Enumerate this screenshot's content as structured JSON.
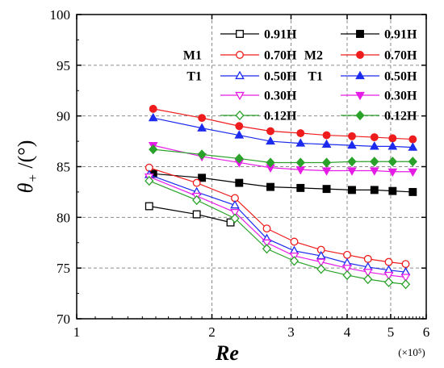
{
  "chart_data": {
    "type": "line",
    "xlabel": "Re",
    "x_multiplier": "(×10⁵)",
    "ylabel_parts": {
      "main": "θ",
      "sub": "+",
      "unit": "/(°)"
    },
    "xlim": [
      1,
      6
    ],
    "ylim": [
      70,
      100
    ],
    "x_ticks": [
      1,
      2,
      3,
      4,
      5,
      6
    ],
    "y_ticks": [
      70,
      75,
      80,
      85,
      90,
      95,
      100
    ],
    "grid": true,
    "legend_position": "top-right",
    "legend_groups": [
      {
        "label": "M1",
        "row": 1,
        "column": 0
      },
      {
        "label": "M2",
        "row": 1,
        "column": 1
      },
      {
        "label": "T1",
        "row": 2,
        "column": 0
      },
      {
        "label": "T1",
        "row": 2,
        "column": 1
      }
    ],
    "series": [
      {
        "name": "0.91H",
        "color": "#000000",
        "marker": "square",
        "filled": false,
        "legend_row": 0,
        "legend_column": 0,
        "x": [
          1.45,
          1.85,
          2.2
        ],
        "y": [
          81.1,
          80.3,
          79.5
        ]
      },
      {
        "name": "0.91H",
        "color": "#000000",
        "marker": "square",
        "filled": true,
        "legend_row": 0,
        "legend_column": 1,
        "x": [
          1.48,
          1.9,
          2.3,
          2.7,
          3.15,
          3.6,
          4.1,
          4.6,
          5.05,
          5.6
        ],
        "y": [
          84.3,
          83.9,
          83.4,
          83.0,
          82.9,
          82.8,
          82.7,
          82.7,
          82.6,
          82.5
        ]
      },
      {
        "name": "0.70H",
        "color": "#ee1c1c",
        "marker": "circle",
        "filled": false,
        "legend_row": 1,
        "legend_column": 0,
        "x": [
          1.45,
          1.85,
          2.25,
          2.65,
          3.05,
          3.5,
          4.0,
          4.45,
          4.95,
          5.4
        ],
        "y": [
          84.9,
          83.4,
          81.9,
          78.9,
          77.6,
          76.8,
          76.3,
          75.9,
          75.6,
          75.4
        ]
      },
      {
        "name": "0.70H",
        "color": "#ee1c1c",
        "marker": "circle",
        "filled": true,
        "legend_row": 1,
        "legend_column": 1,
        "x": [
          1.48,
          1.9,
          2.3,
          2.7,
          3.15,
          3.6,
          4.1,
          4.6,
          5.05,
          5.6
        ],
        "y": [
          90.7,
          89.8,
          89.0,
          88.5,
          88.3,
          88.1,
          88.0,
          87.9,
          87.8,
          87.7
        ]
      },
      {
        "name": "0.50H",
        "color": "#1c2bee",
        "marker": "triangle-up",
        "filled": false,
        "legend_row": 2,
        "legend_column": 0,
        "x": [
          1.45,
          1.85,
          2.25,
          2.65,
          3.05,
          3.5,
          4.0,
          4.45,
          4.95,
          5.4
        ],
        "y": [
          84.2,
          82.5,
          81.2,
          77.9,
          76.7,
          76.2,
          75.5,
          75.1,
          74.8,
          74.6
        ]
      },
      {
        "name": "0.50H",
        "color": "#1c2bee",
        "marker": "triangle-up",
        "filled": true,
        "legend_row": 2,
        "legend_column": 1,
        "x": [
          1.48,
          1.9,
          2.3,
          2.7,
          3.15,
          3.6,
          4.1,
          4.6,
          5.05,
          5.6
        ],
        "y": [
          89.8,
          88.8,
          88.1,
          87.5,
          87.3,
          87.2,
          87.1,
          87.0,
          87.0,
          86.9
        ]
      },
      {
        "name": "0.30H",
        "color": "#e61ce6",
        "marker": "triangle-down",
        "filled": false,
        "legend_row": 3,
        "legend_column": 0,
        "x": [
          1.45,
          1.85,
          2.25,
          2.65,
          3.05,
          3.5,
          4.0,
          4.45,
          4.95,
          5.4
        ],
        "y": [
          84.0,
          82.1,
          80.5,
          77.5,
          76.2,
          75.6,
          75.0,
          74.6,
          74.3,
          74.1
        ]
      },
      {
        "name": "0.30H",
        "color": "#e61ce6",
        "marker": "triangle-down",
        "filled": true,
        "legend_row": 3,
        "legend_column": 1,
        "x": [
          1.48,
          1.9,
          2.3,
          2.7,
          3.15,
          3.6,
          4.1,
          4.6,
          5.05,
          5.6
        ],
        "y": [
          87.1,
          86.0,
          85.4,
          84.9,
          84.7,
          84.6,
          84.6,
          84.6,
          84.5,
          84.5
        ]
      },
      {
        "name": "0.12H",
        "color": "#2aa22a",
        "marker": "diamond",
        "filled": false,
        "legend_row": 4,
        "legend_column": 0,
        "x": [
          1.45,
          1.85,
          2.25,
          2.65,
          3.05,
          3.5,
          4.0,
          4.45,
          4.95,
          5.4
        ],
        "y": [
          83.6,
          81.7,
          79.9,
          76.9,
          75.7,
          74.9,
          74.3,
          73.9,
          73.6,
          73.4
        ]
      },
      {
        "name": "0.12H",
        "color": "#2aa22a",
        "marker": "diamond",
        "filled": true,
        "legend_row": 4,
        "legend_column": 1,
        "x": [
          1.48,
          1.9,
          2.3,
          2.7,
          3.15,
          3.6,
          4.1,
          4.6,
          5.05,
          5.6
        ],
        "y": [
          86.7,
          86.2,
          85.8,
          85.4,
          85.4,
          85.4,
          85.5,
          85.5,
          85.5,
          85.5
        ]
      }
    ]
  }
}
